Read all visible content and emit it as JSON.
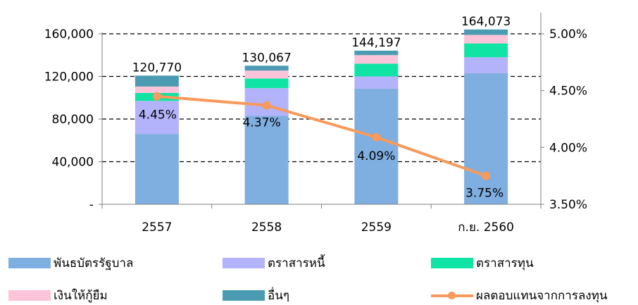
{
  "colors": {
    "series": [
      "#7faee0",
      "#b3b3fb",
      "#10e4a4",
      "#fcc4d8",
      "#4b9cb2"
    ],
    "line": "#f79a5b",
    "grid": "#000000",
    "axis": "#7f7f7f"
  },
  "chart_data": {
    "type": "bar",
    "stacked": true,
    "categories": [
      "2557",
      "2558",
      "2559",
      "ก.ย. 2560"
    ],
    "series": [
      {
        "name": "พันธบัตรรัฐบาล",
        "values": [
          66000,
          83000,
          108500,
          123000
        ]
      },
      {
        "name": "ตราสารหนี้",
        "values": [
          31000,
          26000,
          11500,
          15000
        ]
      },
      {
        "name": "ตราสารทุน",
        "values": [
          7500,
          9000,
          12000,
          13000
        ]
      },
      {
        "name": "เงินให้กู้ยืม",
        "values": [
          6000,
          7500,
          8000,
          8000
        ]
      },
      {
        "name": "อื่นๆ",
        "values": [
          10270,
          4567,
          4197,
          5073
        ]
      }
    ],
    "totals": [
      "120,770",
      "130,067",
      "144,197",
      "164,073"
    ],
    "line_series": {
      "name": "ผลตอบแทนจากการลงทุน",
      "values": [
        4.45,
        4.37,
        4.09,
        3.75
      ],
      "labels": [
        "4.45%",
        "4.37%",
        "4.09%",
        "3.75%"
      ],
      "axis": "right"
    },
    "ylim": [
      0,
      160000
    ],
    "y_ticks": [
      "-",
      "40,000",
      "80,000",
      "120,000",
      "160,000"
    ],
    "y2lim": [
      3.5,
      5.0
    ],
    "y2_ticks": [
      "3.50%",
      "4.00%",
      "4.50%",
      "5.00%"
    ],
    "grid": "dashed",
    "legend_position": "bottom"
  }
}
